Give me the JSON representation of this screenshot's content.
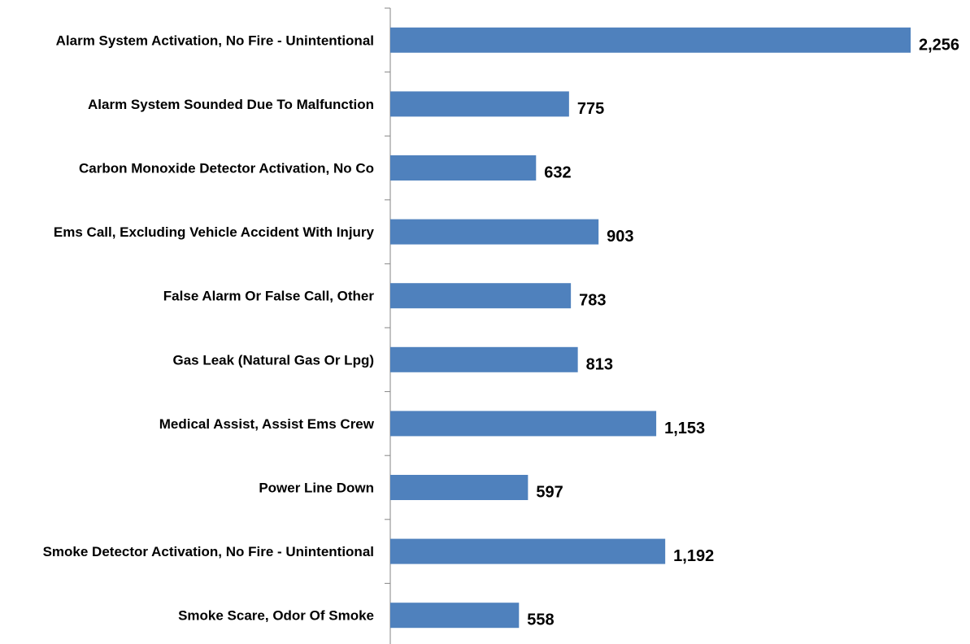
{
  "chart_data": {
    "type": "bar",
    "orientation": "horizontal",
    "categories": [
      "Alarm System Activation, No Fire - Unintentional",
      "Alarm System Sounded Due To Malfunction",
      "Carbon Monoxide Detector Activation, No Co",
      "Ems Call, Excluding Vehicle Accident With Injury",
      "False Alarm Or False Call, Other",
      "Gas Leak (Natural Gas Or Lpg)",
      "Medical Assist, Assist Ems Crew",
      "Power Line Down",
      "Smoke Detector Activation, No Fire - Unintentional",
      "Smoke Scare, Odor Of Smoke"
    ],
    "values": [
      2256,
      775,
      632,
      903,
      783,
      813,
      1153,
      597,
      1192,
      558
    ],
    "value_labels": [
      "2,256",
      "775",
      "632",
      "903",
      "783",
      "813",
      "1,153",
      "597",
      "1,192",
      "558"
    ],
    "title": "",
    "xlabel": "",
    "ylabel": "",
    "xlim": [
      0,
      2400
    ],
    "grid": false,
    "legend": "none",
    "bar_color": "#4F81BD",
    "axis_color": "#868686"
  }
}
